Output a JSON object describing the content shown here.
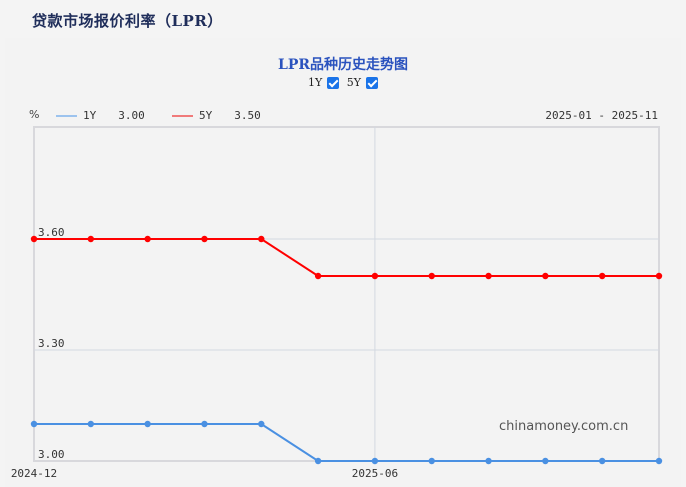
{
  "page": {
    "title": "贷款市场报价利率（LPR）"
  },
  "chart": {
    "title": "LPR品种历史走势图",
    "toggles": [
      {
        "label": "1Y",
        "checked": true
      },
      {
        "label": "5Y",
        "checked": true
      }
    ],
    "unit": "%",
    "legend": [
      {
        "name": "1Y",
        "value": "3.00",
        "color": "#4a90e2",
        "swatch": "#9cc3ee"
      },
      {
        "name": "5Y",
        "value": "3.50",
        "color": "#ff0000",
        "swatch": "#f07a7a"
      }
    ],
    "range": "2025-01 - 2025-11",
    "y_ticks": [
      "3.00",
      "3.30",
      "3.60"
    ],
    "x_ticks": [
      "2024-12",
      "2025-06"
    ],
    "watermark": "chinamoney.com.cn"
  },
  "chart_data": {
    "type": "line",
    "title": "LPR品种历史走势图",
    "xlabel": "",
    "ylabel": "%",
    "x": [
      "2024-12",
      "2025-01",
      "2025-02",
      "2025-03",
      "2025-04",
      "2025-05",
      "2025-06",
      "2025-07",
      "2025-08",
      "2025-09",
      "2025-10",
      "2025-11"
    ],
    "series": [
      {
        "name": "1Y",
        "color": "#4a90e2",
        "values": [
          3.1,
          3.1,
          3.1,
          3.1,
          3.1,
          3.0,
          3.0,
          3.0,
          3.0,
          3.0,
          3.0,
          3.0
        ]
      },
      {
        "name": "5Y",
        "color": "#ff0000",
        "values": [
          3.6,
          3.6,
          3.6,
          3.6,
          3.6,
          3.5,
          3.5,
          3.5,
          3.5,
          3.5,
          3.5,
          3.5
        ]
      }
    ],
    "ylim": [
      3.0,
      3.9
    ],
    "y_ticks": [
      3.0,
      3.3,
      3.6
    ],
    "x_tick_labels": [
      "2024-12",
      "2025-06"
    ],
    "grid": true,
    "legend_position": "top-left"
  }
}
